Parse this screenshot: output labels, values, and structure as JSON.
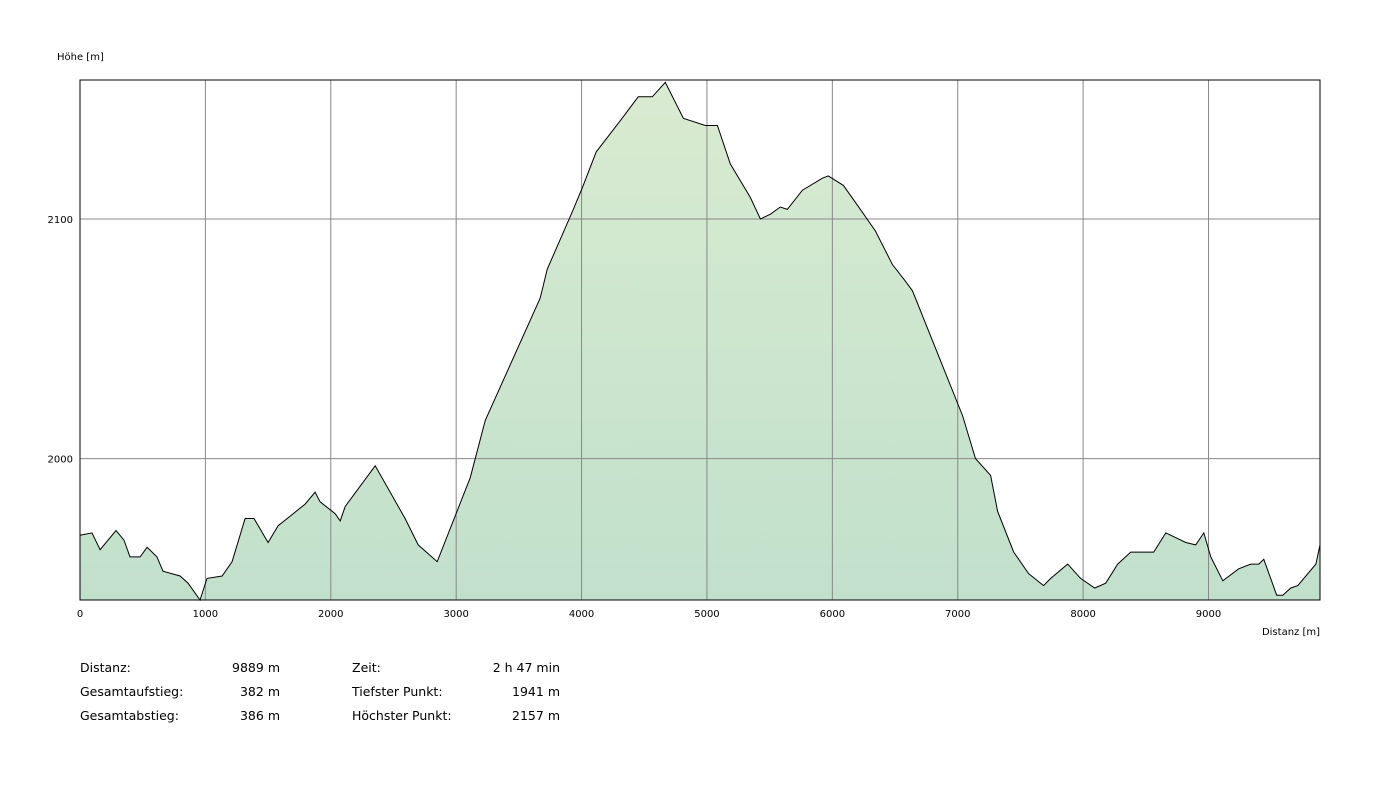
{
  "chart_data": {
    "type": "area",
    "ylabel": "Höhe [m]",
    "xlabel": "Distanz [m]",
    "x": [
      0,
      96,
      160,
      287,
      351,
      399,
      479,
      535,
      614,
      662,
      798,
      862,
      957,
      1013,
      1133,
      1213,
      1317,
      1388,
      1500,
      1580,
      1676,
      1795,
      1875,
      1915,
      2035,
      2075,
      2115,
      2354,
      2593,
      2697,
      2849,
      3112,
      3232,
      3670,
      3726,
      3926,
      4006,
      4117,
      4309,
      4452,
      4564,
      4668,
      4812,
      4987,
      5083,
      5186,
      5346,
      5426,
      5506,
      5585,
      5641,
      5761,
      5921,
      5968,
      6088,
      6224,
      6343,
      6479,
      6583,
      6639,
      7038,
      7142,
      7262,
      7318,
      7446,
      7565,
      7685,
      7741,
      7877,
      7980,
      8092,
      8180,
      8276,
      8379,
      8563,
      8659,
      8739,
      8819,
      8898,
      8962,
      9018,
      9114,
      9241,
      9337,
      9401,
      9441,
      9544,
      9592,
      9656,
      9712,
      9856,
      9889
    ],
    "y": [
      1968,
      1969,
      1962,
      1970,
      1966,
      1959,
      1959,
      1963,
      1959,
      1953,
      1951,
      1948,
      1941,
      1950,
      1951,
      1957,
      1975,
      1975,
      1965,
      1972,
      1976,
      1981,
      1986,
      1982,
      1977,
      1974,
      1980,
      1997,
      1975,
      1964,
      1957,
      1992,
      2016,
      2067,
      2079,
      2103,
      2113,
      2128,
      2141,
      2151,
      2151,
      2157,
      2142,
      2139,
      2139,
      2123,
      2109,
      2100,
      2102,
      2105,
      2104,
      2112,
      2117,
      2118,
      2114,
      2104,
      2095,
      2081,
      2074,
      2070,
      2018,
      2000,
      1993,
      1978,
      1961,
      1952,
      1947,
      1950,
      1956,
      1950,
      1946,
      1948,
      1956,
      1961,
      1961,
      1969,
      1967,
      1965,
      1964,
      1969,
      1959,
      1949,
      1954,
      1956,
      1956,
      1958,
      1943,
      1943,
      1946,
      1947,
      1956,
      1964
    ],
    "xlim": [
      0,
      9889
    ],
    "ylim": [
      1941,
      2158
    ],
    "xticks": [
      0,
      1000,
      2000,
      3000,
      4000,
      5000,
      6000,
      7000,
      8000,
      9000
    ],
    "yticks": [
      2000,
      2100
    ],
    "grid": true,
    "color": "#000000",
    "fill_top": "#d9ebd1",
    "fill_bottom": "#c1e0cb"
  },
  "stats": {
    "rows": [
      [
        "Distanz:",
        "9889 m",
        "Zeit:",
        "2 h 47 min"
      ],
      [
        "Gesamtaufstieg:",
        "382 m",
        "Tiefster Punkt:",
        "1941 m"
      ],
      [
        "Gesamtabstieg:",
        "386 m",
        "Höchster Punkt:",
        "2157 m"
      ]
    ]
  }
}
